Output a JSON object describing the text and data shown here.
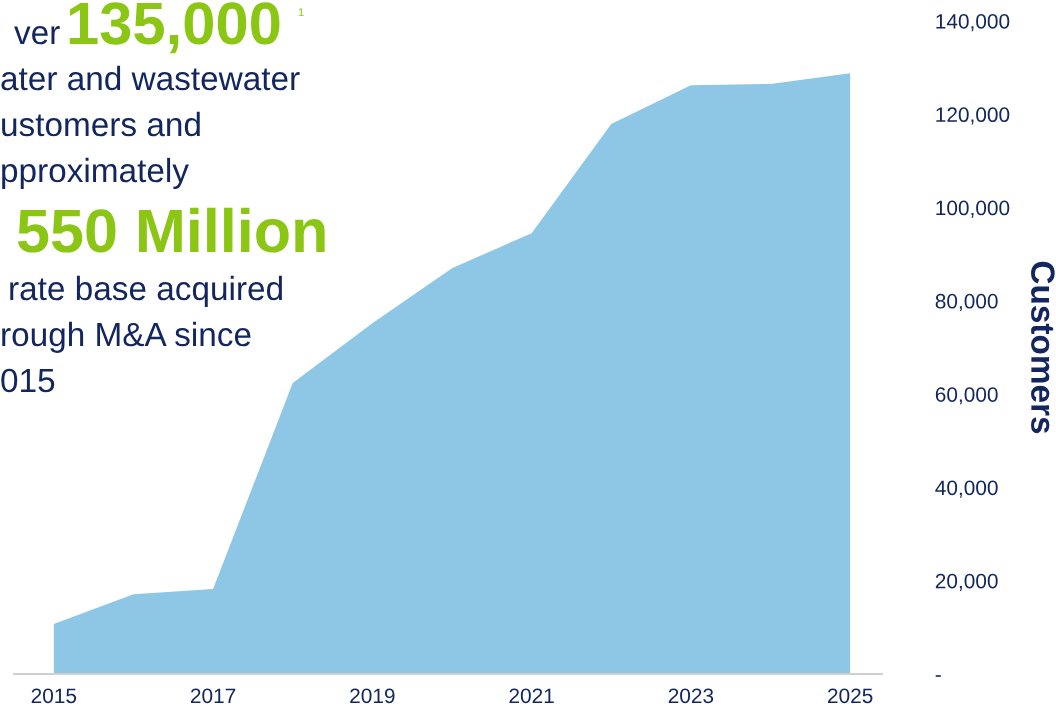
{
  "chart_data": {
    "type": "area",
    "x": [
      2015,
      2016,
      2017,
      2018,
      2019,
      2020,
      2021,
      2022,
      2023,
      2024,
      2025
    ],
    "series": [
      {
        "color": "#8ec6e6",
        "values": [
          10700,
          17100,
          18200,
          62400,
          75200,
          87000,
          94500,
          117900,
          126200,
          126500,
          128800
        ]
      }
    ],
    "xlim": [
      2014.5,
      2025.4
    ],
    "xticks": [
      2015,
      2017,
      2019,
      2021,
      2023,
      2025
    ],
    "ylim": [
      0,
      140000
    ],
    "yticks": [
      {
        "value": 0,
        "label": "-"
      },
      {
        "value": 20000,
        "label": "20,000"
      },
      {
        "value": 40000,
        "label": "40,000"
      },
      {
        "value": 60000,
        "label": "60,000"
      },
      {
        "value": 80000,
        "label": "80,000"
      },
      {
        "value": 100000,
        "label": "100,000"
      },
      {
        "value": 120000,
        "label": "120,000"
      },
      {
        "value": 140000,
        "label": "140,000"
      }
    ],
    "ylabel": "Customers",
    "grid": false,
    "annotations": [
      "ver",
      "135,000",
      "1",
      "ater and wastewater",
      "ustomers and",
      "pproximately",
      "550 Million",
      "rate base acquired",
      "rough M&A since",
      "015"
    ]
  }
}
